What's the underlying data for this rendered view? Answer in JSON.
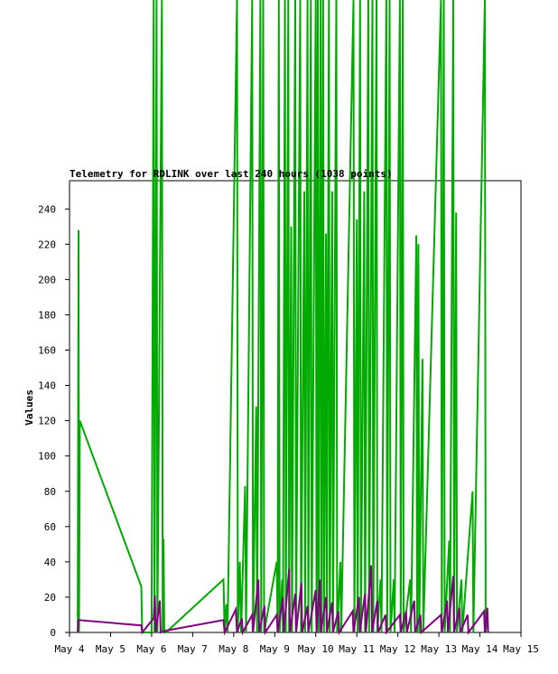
{
  "chart_data": {
    "type": "line",
    "title": "Telemetry for RDLINK over last 240 hours (1038 points)",
    "xlabel": "",
    "ylabel": "Values",
    "x_tick_labels": [
      "May 4",
      "May 5",
      "May 6",
      "May 7",
      "May 8",
      "May 9",
      "May 10",
      "May 11",
      "May 12",
      "May 13",
      "May 14",
      "May 15"
    ],
    "x_range_days": [
      4,
      15
    ],
    "ylim": [
      0,
      256
    ],
    "y_ticks": [
      0,
      20,
      40,
      60,
      80,
      100,
      120,
      140,
      160,
      180,
      200,
      220,
      240
    ],
    "grid": false,
    "legend": "none",
    "colors": {
      "green_series": "#00aa00",
      "purple_series": "#800080",
      "axis": "#000000"
    },
    "series": [
      {
        "color": "#00aa00",
        "note_estimated": true,
        "points": [
          [
            4.2,
            0
          ],
          [
            4.22,
            228
          ],
          [
            4.23,
            0
          ],
          [
            4.25,
            120
          ],
          [
            5.75,
            26
          ],
          [
            5.77,
            0
          ],
          [
            6.0,
            0
          ],
          [
            6.05,
            256
          ],
          [
            6.07,
            0
          ],
          [
            6.12,
            256
          ],
          [
            6.14,
            0
          ],
          [
            6.25,
            256
          ],
          [
            6.27,
            0
          ],
          [
            6.29,
            53
          ],
          [
            6.31,
            0
          ],
          [
            6.35,
            0
          ],
          [
            7.75,
            30
          ],
          [
            7.78,
            0
          ],
          [
            7.82,
            16
          ],
          [
            7.85,
            0
          ],
          [
            8.08,
            256
          ],
          [
            8.1,
            0
          ],
          [
            8.15,
            40
          ],
          [
            8.18,
            0
          ],
          [
            8.28,
            83
          ],
          [
            8.3,
            0
          ],
          [
            8.45,
            256
          ],
          [
            8.47,
            0
          ],
          [
            8.55,
            128
          ],
          [
            8.57,
            0
          ],
          [
            8.65,
            256
          ],
          [
            8.67,
            0
          ],
          [
            8.72,
            256
          ],
          [
            8.74,
            0
          ],
          [
            9.05,
            40
          ],
          [
            9.07,
            0
          ],
          [
            9.1,
            256
          ],
          [
            9.12,
            0
          ],
          [
            9.18,
            30
          ],
          [
            9.2,
            0
          ],
          [
            9.25,
            256
          ],
          [
            9.27,
            0
          ],
          [
            9.33,
            256
          ],
          [
            9.35,
            0
          ],
          [
            9.4,
            230
          ],
          [
            9.42,
            0
          ],
          [
            9.5,
            256
          ],
          [
            9.52,
            0
          ],
          [
            9.62,
            256
          ],
          [
            9.64,
            0
          ],
          [
            9.72,
            250
          ],
          [
            9.74,
            0
          ],
          [
            9.8,
            256
          ],
          [
            9.82,
            0
          ],
          [
            9.88,
            256
          ],
          [
            9.9,
            0
          ],
          [
            10.0,
            256
          ],
          [
            10.02,
            0
          ],
          [
            10.05,
            256
          ],
          [
            10.07,
            0
          ],
          [
            10.12,
            256
          ],
          [
            10.14,
            0
          ],
          [
            10.18,
            256
          ],
          [
            10.2,
            0
          ],
          [
            10.25,
            226
          ],
          [
            10.27,
            0
          ],
          [
            10.32,
            256
          ],
          [
            10.34,
            0
          ],
          [
            10.4,
            250
          ],
          [
            10.42,
            0
          ],
          [
            10.5,
            256
          ],
          [
            10.52,
            0
          ],
          [
            10.6,
            40
          ],
          [
            10.62,
            0
          ],
          [
            10.92,
            256
          ],
          [
            10.94,
            0
          ],
          [
            11.0,
            234
          ],
          [
            11.02,
            0
          ],
          [
            11.08,
            256
          ],
          [
            11.1,
            0
          ],
          [
            11.18,
            250
          ],
          [
            11.2,
            0
          ],
          [
            11.28,
            256
          ],
          [
            11.3,
            0
          ],
          [
            11.38,
            256
          ],
          [
            11.4,
            0
          ],
          [
            11.48,
            256
          ],
          [
            11.5,
            0
          ],
          [
            11.58,
            30
          ],
          [
            11.6,
            0
          ],
          [
            11.72,
            256
          ],
          [
            11.74,
            0
          ],
          [
            11.8,
            256
          ],
          [
            11.82,
            0
          ],
          [
            11.9,
            30
          ],
          [
            11.92,
            0
          ],
          [
            12.05,
            256
          ],
          [
            12.07,
            0
          ],
          [
            12.12,
            256
          ],
          [
            12.14,
            0
          ],
          [
            12.3,
            30
          ],
          [
            12.32,
            0
          ],
          [
            12.45,
            225
          ],
          [
            12.47,
            0
          ],
          [
            12.5,
            220
          ],
          [
            12.52,
            0
          ],
          [
            12.6,
            155
          ],
          [
            12.62,
            0
          ],
          [
            13.05,
            256
          ],
          [
            13.07,
            0
          ],
          [
            13.12,
            256
          ],
          [
            13.14,
            0
          ],
          [
            13.25,
            52
          ],
          [
            13.27,
            0
          ],
          [
            13.35,
            256
          ],
          [
            13.37,
            0
          ],
          [
            13.42,
            238
          ],
          [
            13.44,
            0
          ],
          [
            13.55,
            30
          ],
          [
            13.57,
            0
          ],
          [
            13.82,
            80
          ],
          [
            13.84,
            0
          ],
          [
            14.12,
            256
          ],
          [
            14.14,
            0
          ],
          [
            14.18,
            12
          ],
          [
            14.2,
            0
          ]
        ]
      },
      {
        "color": "#800080",
        "note_estimated": true,
        "points": [
          [
            4.2,
            0
          ],
          [
            4.22,
            7
          ],
          [
            5.75,
            4
          ],
          [
            5.77,
            0
          ],
          [
            6.05,
            8
          ],
          [
            6.08,
            21
          ],
          [
            6.1,
            0
          ],
          [
            6.2,
            18
          ],
          [
            6.22,
            0
          ],
          [
            6.35,
            1
          ],
          [
            7.75,
            7
          ],
          [
            7.78,
            0
          ],
          [
            8.05,
            13
          ],
          [
            8.08,
            0
          ],
          [
            8.2,
            8
          ],
          [
            8.22,
            0
          ],
          [
            8.45,
            10
          ],
          [
            8.47,
            0
          ],
          [
            8.6,
            30
          ],
          [
            8.62,
            0
          ],
          [
            8.75,
            15
          ],
          [
            8.77,
            0
          ],
          [
            9.05,
            10
          ],
          [
            9.07,
            0
          ],
          [
            9.2,
            20
          ],
          [
            9.22,
            0
          ],
          [
            9.35,
            36
          ],
          [
            9.37,
            0
          ],
          [
            9.5,
            22
          ],
          [
            9.52,
            0
          ],
          [
            9.65,
            28
          ],
          [
            9.67,
            0
          ],
          [
            9.8,
            15
          ],
          [
            9.82,
            0
          ],
          [
            10.0,
            24
          ],
          [
            10.02,
            0
          ],
          [
            10.1,
            30
          ],
          [
            10.12,
            0
          ],
          [
            10.25,
            20
          ],
          [
            10.27,
            0
          ],
          [
            10.4,
            17
          ],
          [
            10.42,
            0
          ],
          [
            10.55,
            12
          ],
          [
            10.57,
            0
          ],
          [
            10.9,
            12
          ],
          [
            10.92,
            0
          ],
          [
            11.05,
            20
          ],
          [
            11.07,
            0
          ],
          [
            11.2,
            22
          ],
          [
            11.22,
            0
          ],
          [
            11.35,
            38
          ],
          [
            11.37,
            0
          ],
          [
            11.5,
            18
          ],
          [
            11.52,
            0
          ],
          [
            11.7,
            10
          ],
          [
            11.72,
            0
          ],
          [
            12.05,
            10
          ],
          [
            12.07,
            0
          ],
          [
            12.2,
            12
          ],
          [
            12.22,
            0
          ],
          [
            12.4,
            18
          ],
          [
            12.42,
            0
          ],
          [
            12.55,
            10
          ],
          [
            12.57,
            0
          ],
          [
            13.05,
            10
          ],
          [
            13.07,
            0
          ],
          [
            13.2,
            18
          ],
          [
            13.22,
            0
          ],
          [
            13.35,
            32
          ],
          [
            13.37,
            0
          ],
          [
            13.5,
            14
          ],
          [
            13.52,
            0
          ],
          [
            13.7,
            10
          ],
          [
            13.72,
            0
          ],
          [
            14.1,
            12
          ],
          [
            14.12,
            0
          ],
          [
            14.18,
            14
          ],
          [
            14.2,
            0
          ]
        ]
      }
    ]
  }
}
